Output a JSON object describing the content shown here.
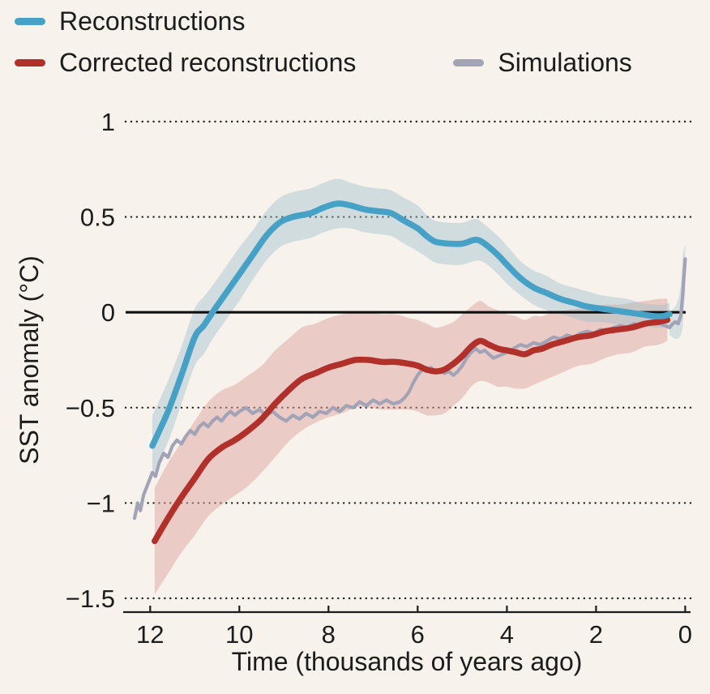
{
  "figure": {
    "background": "#f7f3ec",
    "text_color": "#1c1c1c"
  },
  "chart_data": {
    "type": "line",
    "xlabel": "Time (thousands of years ago)",
    "ylabel": "SST anomaly (°C)",
    "x_axis": {
      "domain": [
        12.55,
        -0.12
      ],
      "reversed": true,
      "tick_values": [
        12,
        10,
        8,
        6,
        4,
        2,
        0
      ],
      "tick_labels": [
        "12",
        "10",
        "8",
        "6",
        "4",
        "2",
        "0"
      ]
    },
    "y_axis": {
      "domain": [
        1,
        -1.5
      ],
      "tick_values": [
        1,
        0.5,
        0,
        -0.5,
        -1,
        -1.5
      ],
      "tick_labels": [
        "1",
        "0.5",
        "0",
        "−0.5",
        "−1",
        "−1.5"
      ],
      "zero_line": true
    },
    "series": [
      {
        "name": "Reconstructions",
        "color": "#45a1c6",
        "width": 7.5,
        "smooth": true,
        "points": [
          [
            11.95,
            -0.7
          ],
          [
            11.6,
            -0.52
          ],
          [
            11.3,
            -0.33
          ],
          [
            11.0,
            -0.13
          ],
          [
            10.8,
            -0.07
          ],
          [
            10.6,
            0.0
          ],
          [
            10.3,
            0.1
          ],
          [
            10.0,
            0.2
          ],
          [
            9.7,
            0.3
          ],
          [
            9.4,
            0.4
          ],
          [
            9.1,
            0.47
          ],
          [
            8.8,
            0.5
          ],
          [
            8.4,
            0.52
          ],
          [
            8.1,
            0.55
          ],
          [
            7.8,
            0.57
          ],
          [
            7.5,
            0.56
          ],
          [
            7.2,
            0.54
          ],
          [
            6.9,
            0.53
          ],
          [
            6.6,
            0.52
          ],
          [
            6.3,
            0.48
          ],
          [
            6.0,
            0.44
          ],
          [
            5.8,
            0.4
          ],
          [
            5.6,
            0.37
          ],
          [
            5.3,
            0.36
          ],
          [
            5.0,
            0.36
          ],
          [
            4.7,
            0.38
          ],
          [
            4.5,
            0.36
          ],
          [
            4.2,
            0.3
          ],
          [
            4.0,
            0.25
          ],
          [
            3.7,
            0.18
          ],
          [
            3.4,
            0.13
          ],
          [
            3.1,
            0.1
          ],
          [
            2.8,
            0.07
          ],
          [
            2.5,
            0.05
          ],
          [
            2.2,
            0.03
          ],
          [
            1.9,
            0.02
          ],
          [
            1.6,
            0.01
          ],
          [
            1.3,
            0.0
          ],
          [
            1.0,
            -0.01
          ],
          [
            0.7,
            -0.02
          ],
          [
            0.5,
            -0.02
          ],
          [
            0.35,
            -0.01
          ]
        ],
        "band": {
          "color": "#9fc2cd",
          "opacity": 0.45,
          "halfwidth": [
            0.16,
            0.16,
            0.15,
            0.15,
            0.15,
            0.14,
            0.14,
            0.14,
            0.13,
            0.13,
            0.13,
            0.13,
            0.13,
            0.13,
            0.13,
            0.12,
            0.12,
            0.12,
            0.12,
            0.12,
            0.12,
            0.11,
            0.11,
            0.11,
            0.11,
            0.11,
            0.1,
            0.1,
            0.1,
            0.09,
            0.09,
            0.09,
            0.08,
            0.08,
            0.08,
            0.07,
            0.07,
            0.07,
            0.06,
            0.06,
            0.06,
            0.06
          ]
        }
      },
      {
        "name": "Corrected reconstructions",
        "color": "#b13029",
        "width": 7.5,
        "smooth": true,
        "points": [
          [
            11.9,
            -1.2
          ],
          [
            11.6,
            -1.08
          ],
          [
            11.3,
            -0.97
          ],
          [
            11.0,
            -0.87
          ],
          [
            10.7,
            -0.77
          ],
          [
            10.4,
            -0.71
          ],
          [
            10.1,
            -0.67
          ],
          [
            9.8,
            -0.62
          ],
          [
            9.5,
            -0.56
          ],
          [
            9.2,
            -0.48
          ],
          [
            8.9,
            -0.41
          ],
          [
            8.6,
            -0.35
          ],
          [
            8.3,
            -0.32
          ],
          [
            8.0,
            -0.29
          ],
          [
            7.7,
            -0.27
          ],
          [
            7.4,
            -0.25
          ],
          [
            7.1,
            -0.25
          ],
          [
            6.8,
            -0.26
          ],
          [
            6.5,
            -0.26
          ],
          [
            6.2,
            -0.27
          ],
          [
            6.0,
            -0.28
          ],
          [
            5.8,
            -0.3
          ],
          [
            5.6,
            -0.31
          ],
          [
            5.4,
            -0.3
          ],
          [
            5.2,
            -0.27
          ],
          [
            5.0,
            -0.23
          ],
          [
            4.8,
            -0.18
          ],
          [
            4.6,
            -0.15
          ],
          [
            4.4,
            -0.17
          ],
          [
            4.2,
            -0.19
          ],
          [
            4.0,
            -0.2
          ],
          [
            3.8,
            -0.21
          ],
          [
            3.6,
            -0.22
          ],
          [
            3.4,
            -0.2
          ],
          [
            3.2,
            -0.19
          ],
          [
            3.0,
            -0.17
          ],
          [
            2.7,
            -0.15
          ],
          [
            2.4,
            -0.13
          ],
          [
            2.1,
            -0.12
          ],
          [
            1.8,
            -0.1
          ],
          [
            1.5,
            -0.09
          ],
          [
            1.2,
            -0.08
          ],
          [
            0.9,
            -0.06
          ],
          [
            0.6,
            -0.05
          ],
          [
            0.4,
            -0.04
          ]
        ],
        "band": {
          "color": "#dfa49e",
          "opacity": 0.5,
          "halfwidth": [
            0.28,
            0.29,
            0.29,
            0.3,
            0.3,
            0.3,
            0.29,
            0.29,
            0.28,
            0.28,
            0.27,
            0.27,
            0.26,
            0.26,
            0.26,
            0.25,
            0.25,
            0.25,
            0.25,
            0.24,
            0.24,
            0.24,
            0.23,
            0.23,
            0.22,
            0.22,
            0.21,
            0.21,
            0.2,
            0.2,
            0.19,
            0.19,
            0.18,
            0.18,
            0.17,
            0.17,
            0.16,
            0.15,
            0.15,
            0.14,
            0.13,
            0.13,
            0.12,
            0.12,
            0.11
          ]
        }
      },
      {
        "name": "Simulations",
        "color": "#a2a3b6",
        "width": 4.2,
        "smooth": false,
        "points": [
          [
            12.35,
            -1.08
          ],
          [
            12.28,
            -1.0
          ],
          [
            12.22,
            -1.04
          ],
          [
            12.15,
            -0.96
          ],
          [
            12.05,
            -0.9
          ],
          [
            11.95,
            -0.84
          ],
          [
            11.88,
            -0.86
          ],
          [
            11.8,
            -0.79
          ],
          [
            11.7,
            -0.74
          ],
          [
            11.6,
            -0.76
          ],
          [
            11.5,
            -0.7
          ],
          [
            11.4,
            -0.67
          ],
          [
            11.3,
            -0.69
          ],
          [
            11.2,
            -0.65
          ],
          [
            11.1,
            -0.62
          ],
          [
            11.0,
            -0.64
          ],
          [
            10.9,
            -0.6
          ],
          [
            10.8,
            -0.58
          ],
          [
            10.7,
            -0.6
          ],
          [
            10.6,
            -0.57
          ],
          [
            10.5,
            -0.55
          ],
          [
            10.4,
            -0.57
          ],
          [
            10.3,
            -0.54
          ],
          [
            10.2,
            -0.52
          ],
          [
            10.1,
            -0.54
          ],
          [
            10.0,
            -0.52
          ],
          [
            9.85,
            -0.5
          ],
          [
            9.7,
            -0.53
          ],
          [
            9.55,
            -0.51
          ],
          [
            9.4,
            -0.54
          ],
          [
            9.25,
            -0.52
          ],
          [
            9.1,
            -0.55
          ],
          [
            8.95,
            -0.57
          ],
          [
            8.8,
            -0.54
          ],
          [
            8.65,
            -0.56
          ],
          [
            8.5,
            -0.53
          ],
          [
            8.35,
            -0.55
          ],
          [
            8.2,
            -0.52
          ],
          [
            8.05,
            -0.53
          ],
          [
            7.9,
            -0.5
          ],
          [
            7.75,
            -0.52
          ],
          [
            7.6,
            -0.49
          ],
          [
            7.45,
            -0.5
          ],
          [
            7.3,
            -0.47
          ],
          [
            7.15,
            -0.49
          ],
          [
            7.0,
            -0.46
          ],
          [
            6.85,
            -0.48
          ],
          [
            6.7,
            -0.46
          ],
          [
            6.55,
            -0.48
          ],
          [
            6.4,
            -0.47
          ],
          [
            6.3,
            -0.45
          ],
          [
            6.2,
            -0.42
          ],
          [
            6.1,
            -0.37
          ],
          [
            6.0,
            -0.33
          ],
          [
            5.9,
            -0.3
          ],
          [
            5.8,
            -0.31
          ],
          [
            5.7,
            -0.29
          ],
          [
            5.6,
            -0.31
          ],
          [
            5.5,
            -0.3
          ],
          [
            5.4,
            -0.32
          ],
          [
            5.3,
            -0.31
          ],
          [
            5.2,
            -0.33
          ],
          [
            5.1,
            -0.31
          ],
          [
            5.0,
            -0.28
          ],
          [
            4.9,
            -0.24
          ],
          [
            4.8,
            -0.21
          ],
          [
            4.7,
            -0.19
          ],
          [
            4.6,
            -0.21
          ],
          [
            4.5,
            -0.2
          ],
          [
            4.4,
            -0.22
          ],
          [
            4.3,
            -0.24
          ],
          [
            4.2,
            -0.23
          ],
          [
            4.1,
            -0.22
          ],
          [
            4.0,
            -0.21
          ],
          [
            3.85,
            -0.19
          ],
          [
            3.7,
            -0.17
          ],
          [
            3.55,
            -0.18
          ],
          [
            3.4,
            -0.16
          ],
          [
            3.25,
            -0.17
          ],
          [
            3.1,
            -0.15
          ],
          [
            2.95,
            -0.13
          ],
          [
            2.8,
            -0.14
          ],
          [
            2.65,
            -0.12
          ],
          [
            2.5,
            -0.13
          ],
          [
            2.35,
            -0.11
          ],
          [
            2.2,
            -0.1
          ],
          [
            2.05,
            -0.11
          ],
          [
            1.9,
            -0.09
          ],
          [
            1.75,
            -0.1
          ],
          [
            1.6,
            -0.08
          ],
          [
            1.45,
            -0.07
          ],
          [
            1.3,
            -0.08
          ],
          [
            1.15,
            -0.06
          ],
          [
            1.0,
            -0.07
          ],
          [
            0.85,
            -0.05
          ],
          [
            0.7,
            -0.06
          ],
          [
            0.55,
            -0.06
          ],
          [
            0.45,
            -0.07
          ],
          [
            0.35,
            -0.08
          ],
          [
            0.28,
            -0.06
          ],
          [
            0.22,
            -0.05
          ],
          [
            0.16,
            -0.06
          ],
          [
            0.1,
            -0.02
          ],
          [
            0.06,
            0.08
          ],
          [
            0.03,
            0.18
          ],
          [
            0.0,
            0.28
          ]
        ],
        "band": {
          "color": "#9fc2cd",
          "opacity": 0.4,
          "points_upper": [
            [
              0.35,
              0.0
            ],
            [
              0.2,
              0.04
            ],
            [
              0.1,
              0.14
            ],
            [
              0.05,
              0.3
            ],
            [
              0.0,
              0.36
            ]
          ],
          "points_lower": [
            [
              0.35,
              -0.12
            ],
            [
              0.2,
              -0.14
            ],
            [
              0.1,
              -0.12
            ],
            [
              0.05,
              -0.06
            ],
            [
              0.0,
              0.12
            ]
          ]
        }
      }
    ]
  }
}
